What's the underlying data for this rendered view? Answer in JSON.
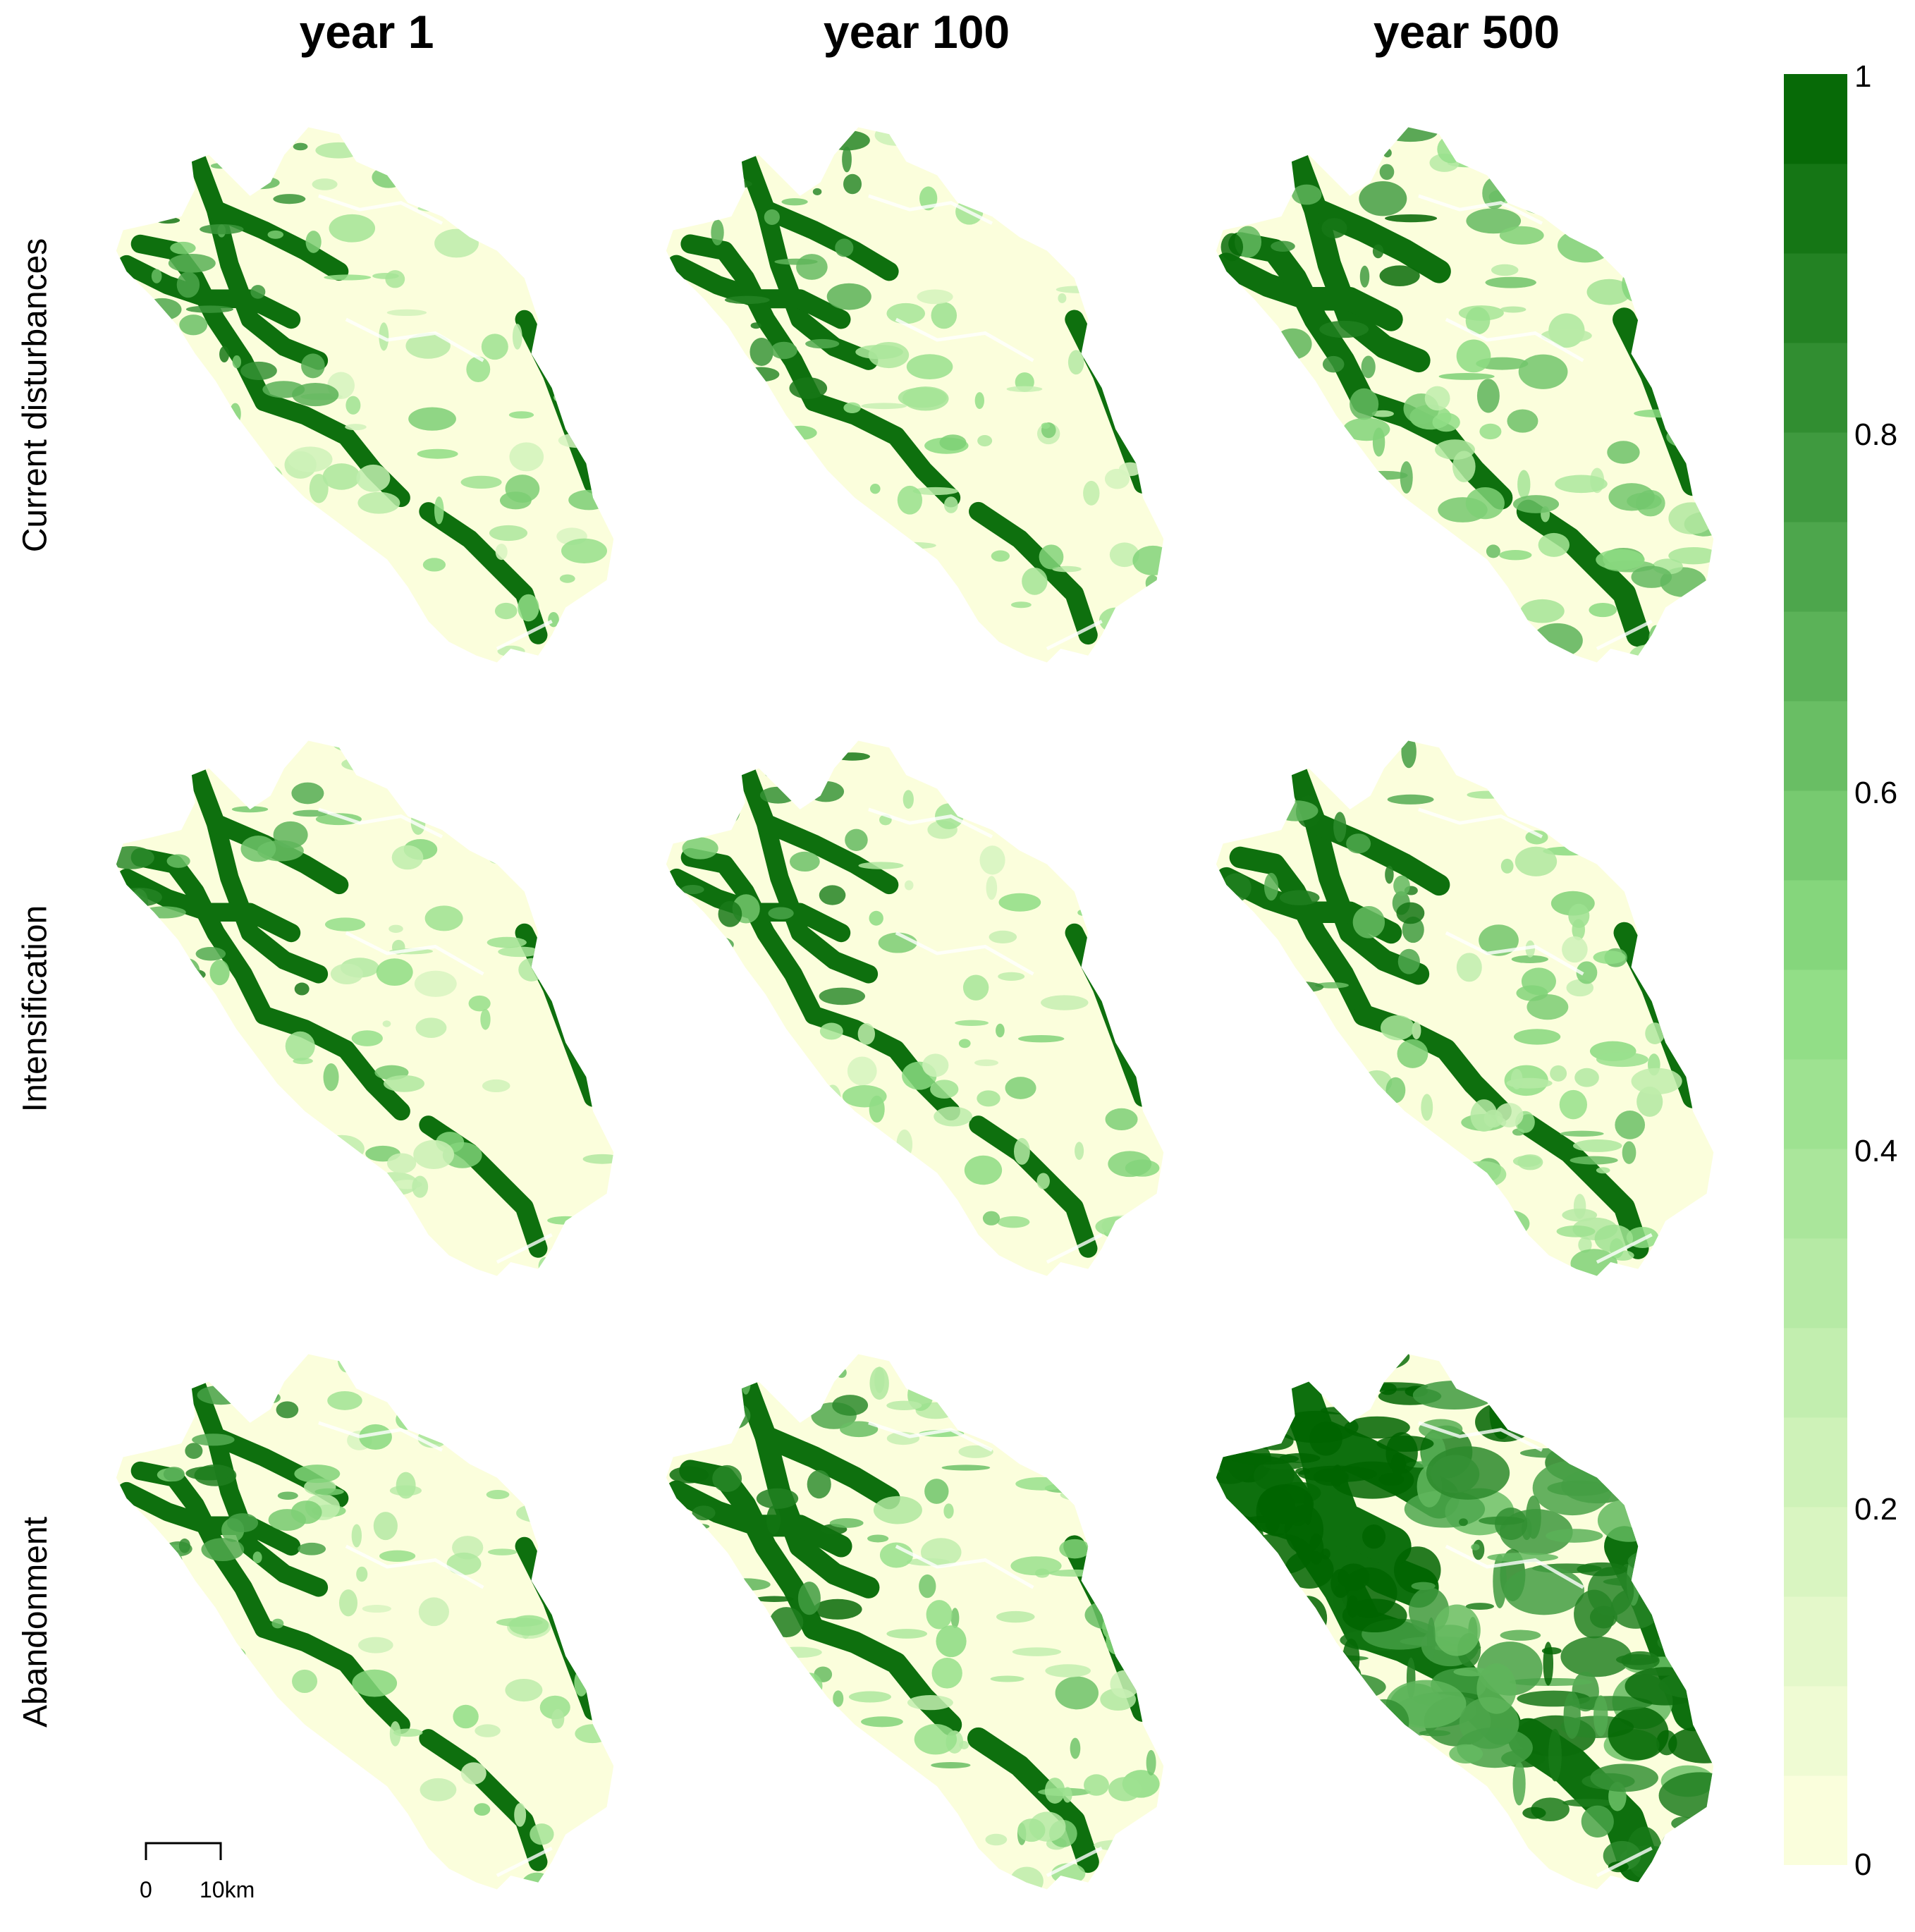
{
  "columns": [
    {
      "title": "year 1"
    },
    {
      "title": "year 100"
    },
    {
      "title": "year 500"
    }
  ],
  "rows": [
    {
      "label": "Current disturbances"
    },
    {
      "label": "Intensification"
    },
    {
      "label": "Abandonment"
    }
  ],
  "panels": [
    {
      "row": 0,
      "col": 0,
      "mean_value": 0.22
    },
    {
      "row": 0,
      "col": 1,
      "mean_value": 0.23
    },
    {
      "row": 0,
      "col": 2,
      "mean_value": 0.34
    },
    {
      "row": 1,
      "col": 0,
      "mean_value": 0.22
    },
    {
      "row": 1,
      "col": 1,
      "mean_value": 0.22
    },
    {
      "row": 1,
      "col": 2,
      "mean_value": 0.29
    },
    {
      "row": 2,
      "col": 0,
      "mean_value": 0.22
    },
    {
      "row": 2,
      "col": 1,
      "mean_value": 0.3
    },
    {
      "row": 2,
      "col": 2,
      "mean_value": 0.75
    }
  ],
  "legend": {
    "min": 0,
    "max": 1,
    "ticks": [
      "1",
      "0.8",
      "0.6",
      "0.4",
      "0.2",
      "0"
    ],
    "tick_values": [
      1,
      0.8,
      0.6,
      0.4,
      0.2,
      0
    ],
    "low_color": "#ffffe0",
    "high_color": "#006400",
    "steps": 20
  },
  "scale_bar": {
    "start_label": "0",
    "end_label": "10km"
  }
}
